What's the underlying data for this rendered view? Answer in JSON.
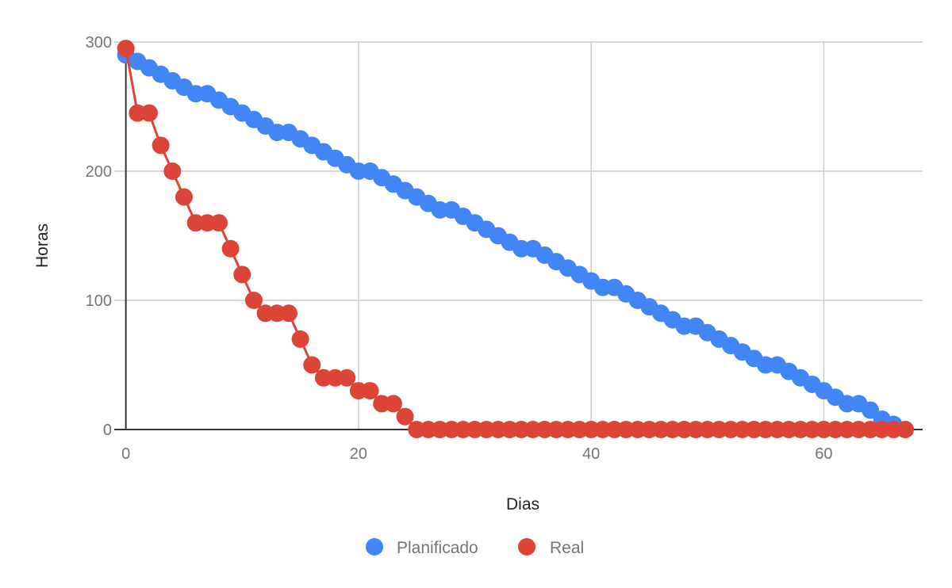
{
  "chart_data": {
    "type": "line",
    "title": "",
    "xlabel": "Dias",
    "ylabel": "Horas",
    "xlim": [
      -1,
      68.5
    ],
    "ylim": [
      0,
      300
    ],
    "xticks": [
      0,
      20,
      40,
      60
    ],
    "yticks": [
      0,
      100,
      200,
      300
    ],
    "grid": true,
    "legend": "bottom",
    "series": [
      {
        "name": "Planificado",
        "color": "#4285F4",
        "x": [
          0,
          1,
          2,
          3,
          4,
          5,
          6,
          7,
          8,
          9,
          10,
          11,
          12,
          13,
          14,
          15,
          16,
          17,
          18,
          19,
          20,
          21,
          22,
          23,
          24,
          25,
          26,
          27,
          28,
          29,
          30,
          31,
          32,
          33,
          34,
          35,
          36,
          37,
          38,
          39,
          40,
          41,
          42,
          43,
          44,
          45,
          46,
          47,
          48,
          49,
          50,
          51,
          52,
          53,
          54,
          55,
          56,
          57,
          58,
          59,
          60,
          61,
          62,
          63,
          64,
          65,
          66
        ],
        "y": [
          290,
          285,
          280,
          275,
          270,
          265,
          260,
          260,
          255,
          250,
          245,
          240,
          235,
          230,
          230,
          225,
          220,
          215,
          210,
          205,
          200,
          200,
          195,
          190,
          185,
          180,
          175,
          170,
          170,
          165,
          160,
          155,
          150,
          145,
          140,
          140,
          135,
          130,
          125,
          120,
          115,
          110,
          110,
          105,
          100,
          95,
          90,
          85,
          80,
          80,
          75,
          70,
          65,
          60,
          55,
          50,
          50,
          45,
          40,
          35,
          30,
          25,
          20,
          20,
          15,
          8,
          4
        ]
      },
      {
        "name": "Real",
        "color": "#DB4437",
        "x": [
          0,
          1,
          2,
          3,
          4,
          5,
          6,
          7,
          8,
          9,
          10,
          11,
          12,
          13,
          14,
          15,
          16,
          17,
          18,
          19,
          20,
          21,
          22,
          23,
          24,
          25,
          26,
          27,
          28,
          29,
          30,
          31,
          32,
          33,
          34,
          35,
          36,
          37,
          38,
          39,
          40,
          41,
          42,
          43,
          44,
          45,
          46,
          47,
          48,
          49,
          50,
          51,
          52,
          53,
          54,
          55,
          56,
          57,
          58,
          59,
          60,
          61,
          62,
          63,
          64,
          65,
          66,
          67
        ],
        "y": [
          295,
          245,
          245,
          220,
          200,
          180,
          160,
          160,
          160,
          140,
          120,
          100,
          90,
          90,
          90,
          70,
          50,
          40,
          40,
          40,
          30,
          30,
          20,
          20,
          10,
          0,
          0,
          0,
          0,
          0,
          0,
          0,
          0,
          0,
          0,
          0,
          0,
          0,
          0,
          0,
          0,
          0,
          0,
          0,
          0,
          0,
          0,
          0,
          0,
          0,
          0,
          0,
          0,
          0,
          0,
          0,
          0,
          0,
          0,
          0,
          0,
          0,
          0,
          0,
          0,
          0,
          0,
          0
        ]
      }
    ]
  }
}
